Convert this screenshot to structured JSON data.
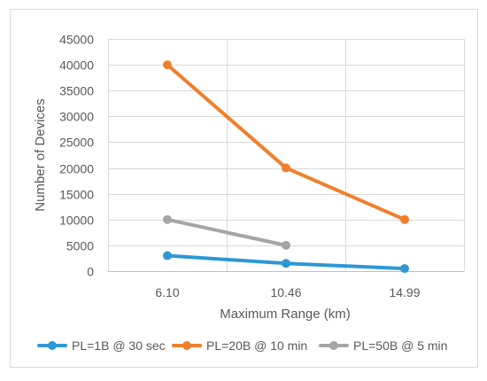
{
  "chart_data": {
    "type": "line",
    "title": "",
    "xlabel": "Maximum Range (km)",
    "ylabel": "Number of Devices",
    "categories": [
      "6.10",
      "10.46",
      "14.99"
    ],
    "yticks": [
      "0",
      "5000",
      "10000",
      "15000",
      "20000",
      "25000",
      "30000",
      "35000",
      "40000",
      "45000"
    ],
    "ylim": [
      0,
      45000
    ],
    "grid": true,
    "legend_position": "bottom",
    "series": [
      {
        "name": "PL=1B @ 30 sec",
        "color": "#2e97d4",
        "values": [
          3000,
          1500,
          500
        ]
      },
      {
        "name": "PL=20B @ 10 min",
        "color": "#f07f2d",
        "values": [
          40000,
          20000,
          10000
        ]
      },
      {
        "name": "PL=50B @ 5 min",
        "color": "#a5a5a5",
        "values": [
          10000,
          5000,
          null
        ]
      }
    ]
  }
}
